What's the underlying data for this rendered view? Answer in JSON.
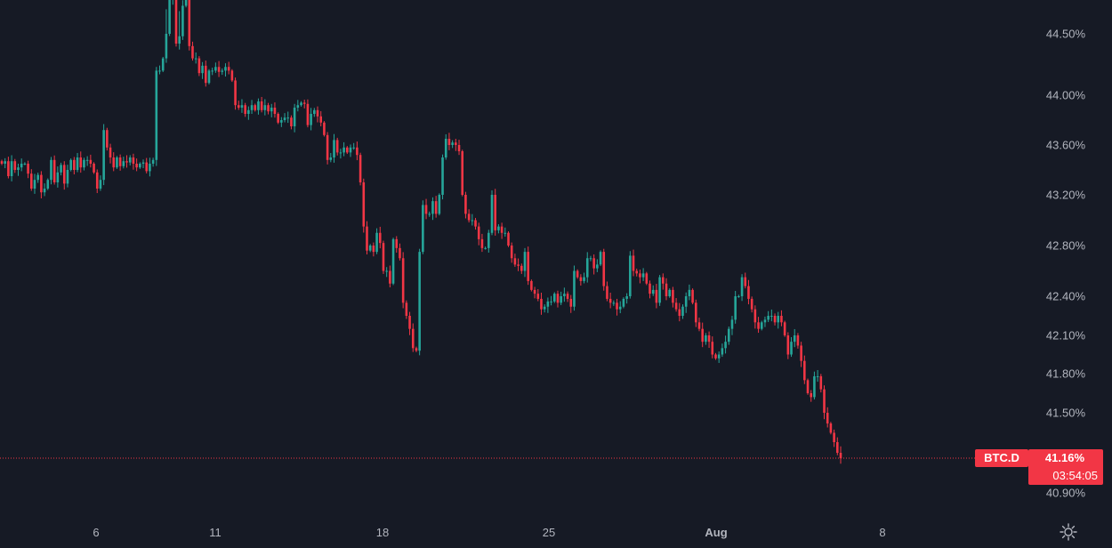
{
  "chart_data": {
    "type": "candlestick",
    "title": "",
    "symbol": "BTC.D",
    "last_price": "41.16%",
    "countdown": "03:54:05",
    "y_axis": {
      "side": "right",
      "scale": "percent",
      "ticks": [
        "44.50%",
        "44.00%",
        "43.60%",
        "43.20%",
        "42.80%",
        "42.40%",
        "42.10%",
        "41.80%",
        "41.50%",
        "40.90%"
      ],
      "ylim": [
        40.75,
        44.75
      ]
    },
    "x_axis": {
      "ticks": [
        "6",
        "11",
        "18",
        "25",
        "Aug",
        "8"
      ]
    },
    "grid": false,
    "colors": {
      "up": "#26a69a",
      "down": "#f23645",
      "background": "#161a25",
      "text": "#b2b5be"
    },
    "series": [
      {
        "values": [
          43.45,
          43.47,
          43.35,
          43.47,
          43.4,
          43.42,
          43.45,
          43.45,
          43.37,
          43.25,
          43.32,
          43.36,
          43.22,
          43.25,
          43.32,
          43.48,
          43.3,
          43.38,
          43.44,
          43.29,
          43.4,
          43.48,
          43.4,
          43.5,
          43.42,
          43.48,
          43.48,
          43.45,
          43.38,
          43.25,
          43.32,
          43.72,
          43.58,
          43.5,
          43.42,
          43.5,
          43.43,
          43.47,
          43.46,
          43.5,
          43.45,
          43.42,
          43.45,
          43.46,
          43.39,
          43.45,
          43.48,
          44.2,
          44.2,
          44.3,
          44.5,
          44.6,
          44.6,
          44.42,
          44.48,
          44.55,
          44.62,
          44.4,
          44.3,
          44.3,
          44.18,
          44.24,
          44.1,
          44.2,
          44.2,
          44.23,
          44.19,
          44.2,
          44.23,
          44.2,
          44.12,
          43.92,
          43.9,
          43.92,
          43.85,
          43.88,
          43.92,
          43.88,
          43.95,
          43.88,
          43.92,
          43.87,
          43.9,
          43.85,
          43.78,
          43.8,
          43.82,
          43.82,
          43.75,
          43.9,
          43.92,
          43.94,
          43.93,
          43.76,
          43.85,
          43.88,
          43.83,
          43.78,
          43.68,
          43.48,
          43.5,
          43.64,
          43.54,
          43.54,
          43.58,
          43.54,
          43.58,
          43.58,
          43.52,
          43.3,
          42.95,
          42.76,
          42.8,
          42.75,
          42.9,
          42.82,
          42.6,
          42.6,
          42.5,
          42.85,
          42.78,
          42.7,
          42.35,
          42.25,
          42.15,
          42.0,
          41.98,
          42.75,
          43.12,
          43.05,
          43.05,
          43.15,
          43.05,
          43.2,
          43.5,
          43.65,
          43.6,
          43.62,
          43.6,
          43.55,
          43.2,
          43.05,
          43.0,
          43.0,
          42.95,
          42.85,
          42.78,
          42.78,
          42.9,
          43.2,
          42.92,
          42.95,
          42.9,
          42.9,
          42.8,
          42.7,
          42.65,
          42.64,
          42.6,
          42.75,
          42.52,
          42.45,
          42.42,
          42.38,
          42.3,
          42.32,
          42.36,
          42.36,
          42.42,
          42.35,
          42.4,
          42.42,
          42.38,
          42.32,
          42.6,
          42.55,
          42.52,
          42.55,
          42.7,
          42.7,
          42.62,
          42.65,
          42.75,
          42.48,
          42.38,
          42.35,
          42.35,
          42.3,
          42.32,
          42.38,
          42.4,
          42.72,
          42.6,
          42.58,
          42.55,
          42.58,
          42.5,
          42.42,
          42.45,
          42.35,
          42.55,
          42.5,
          42.4,
          42.45,
          42.35,
          42.3,
          42.25,
          42.32,
          42.4,
          42.45,
          42.35,
          42.2,
          42.15,
          42.05,
          42.1,
          42.05,
          41.95,
          41.92,
          41.95,
          42.0,
          42.05,
          42.15,
          42.22,
          42.4,
          42.4,
          42.55,
          42.48,
          42.38,
          42.3,
          42.2,
          42.15,
          42.2,
          42.22,
          42.25,
          42.25,
          42.2,
          42.25,
          42.2,
          42.1,
          41.95,
          42.05,
          42.1,
          42.02,
          41.9,
          41.75,
          41.65,
          41.62,
          41.78,
          41.78,
          41.68,
          41.5,
          41.42,
          41.35,
          41.28,
          41.2,
          41.16
        ]
      }
    ]
  }
}
